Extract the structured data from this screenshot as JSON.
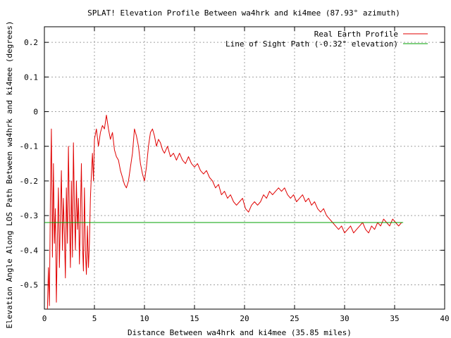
{
  "chart_data": {
    "type": "line",
    "title": "SPLAT! Elevation Profile Between wa4hrk and ki4mee (87.93° azimuth)",
    "xlabel": "Distance Between wa4hrk and ki4mee (35.85 miles)",
    "ylabel": "Elevation Angle Along LOS Path Between wa4hrk and ki4mee (degrees)",
    "xlim": [
      0,
      40
    ],
    "ylim": [
      -0.57,
      0.245
    ],
    "x_ticks": [
      "0",
      "5",
      "10",
      "15",
      "20",
      "25",
      "30",
      "35",
      "40"
    ],
    "x_tick_values": [
      0,
      5,
      10,
      15,
      20,
      25,
      30,
      35,
      40
    ],
    "y_ticks": [
      "0.2",
      "0.1",
      "0",
      "-0.1",
      "-0.2",
      "-0.3",
      "-0.4",
      "-0.5"
    ],
    "y_tick_values": [
      0.2,
      0.1,
      0,
      -0.1,
      -0.2,
      -0.3,
      -0.4,
      -0.5
    ],
    "grid": true,
    "legend_position": "top-right",
    "series": [
      {
        "name": "Real Earth Profile",
        "color": "#e00000",
        "x": [
          0.3,
          0.4,
          0.5,
          0.6,
          0.7,
          0.8,
          0.9,
          1.0,
          1.1,
          1.2,
          1.3,
          1.4,
          1.5,
          1.6,
          1.7,
          1.8,
          1.9,
          2.0,
          2.1,
          2.2,
          2.3,
          2.4,
          2.5,
          2.6,
          2.7,
          2.8,
          2.9,
          3.0,
          3.1,
          3.2,
          3.3,
          3.4,
          3.5,
          3.6,
          3.7,
          3.8,
          3.9,
          4.0,
          4.1,
          4.2,
          4.3,
          4.4,
          4.5,
          4.6,
          4.7,
          4.8,
          4.9,
          5.0,
          5.2,
          5.4,
          5.6,
          5.8,
          6.0,
          6.2,
          6.4,
          6.6,
          6.8,
          7.0,
          7.2,
          7.4,
          7.6,
          7.8,
          8.0,
          8.2,
          8.4,
          8.6,
          8.8,
          9.0,
          9.2,
          9.4,
          9.6,
          9.8,
          10.0,
          10.2,
          10.4,
          10.6,
          10.8,
          11.0,
          11.2,
          11.4,
          11.6,
          11.8,
          12.0,
          12.3,
          12.6,
          12.9,
          13.2,
          13.5,
          13.8,
          14.1,
          14.4,
          14.7,
          15.0,
          15.3,
          15.6,
          15.9,
          16.2,
          16.5,
          16.8,
          17.1,
          17.4,
          17.7,
          18.0,
          18.3,
          18.6,
          18.9,
          19.2,
          19.5,
          19.8,
          20.1,
          20.4,
          20.7,
          21.0,
          21.3,
          21.6,
          21.9,
          22.2,
          22.5,
          22.8,
          23.1,
          23.4,
          23.7,
          24.0,
          24.3,
          24.6,
          24.9,
          25.2,
          25.5,
          25.8,
          26.1,
          26.4,
          26.7,
          27.0,
          27.3,
          27.6,
          27.9,
          28.2,
          28.5,
          28.8,
          29.1,
          29.4,
          29.7,
          30.0,
          30.3,
          30.6,
          30.9,
          31.2,
          31.5,
          31.8,
          32.1,
          32.4,
          32.7,
          33.0,
          33.3,
          33.6,
          33.9,
          34.2,
          34.5,
          34.8,
          35.1,
          35.4,
          35.7
        ],
        "y": [
          -0.57,
          -0.45,
          -0.56,
          -0.25,
          -0.05,
          -0.42,
          -0.15,
          -0.38,
          -0.28,
          -0.55,
          -0.36,
          -0.22,
          -0.45,
          -0.3,
          -0.17,
          -0.4,
          -0.25,
          -0.35,
          -0.48,
          -0.22,
          -0.38,
          -0.1,
          -0.3,
          -0.45,
          -0.2,
          -0.42,
          -0.09,
          -0.28,
          -0.4,
          -0.2,
          -0.34,
          -0.25,
          -0.44,
          -0.3,
          -0.15,
          -0.38,
          -0.46,
          -0.22,
          -0.4,
          -0.47,
          -0.33,
          -0.45,
          -0.38,
          -0.25,
          -0.18,
          -0.12,
          -0.2,
          -0.08,
          -0.05,
          -0.1,
          -0.06,
          -0.04,
          -0.05,
          -0.01,
          -0.05,
          -0.08,
          -0.06,
          -0.11,
          -0.13,
          -0.14,
          -0.17,
          -0.19,
          -0.21,
          -0.22,
          -0.2,
          -0.16,
          -0.12,
          -0.05,
          -0.07,
          -0.1,
          -0.15,
          -0.18,
          -0.2,
          -0.16,
          -0.1,
          -0.06,
          -0.05,
          -0.07,
          -0.1,
          -0.08,
          -0.09,
          -0.11,
          -0.12,
          -0.1,
          -0.13,
          -0.12,
          -0.14,
          -0.12,
          -0.14,
          -0.15,
          -0.13,
          -0.15,
          -0.16,
          -0.15,
          -0.17,
          -0.18,
          -0.17,
          -0.19,
          -0.2,
          -0.22,
          -0.21,
          -0.24,
          -0.23,
          -0.25,
          -0.24,
          -0.26,
          -0.27,
          -0.26,
          -0.25,
          -0.28,
          -0.29,
          -0.27,
          -0.26,
          -0.27,
          -0.26,
          -0.24,
          -0.25,
          -0.23,
          -0.24,
          -0.23,
          -0.22,
          -0.23,
          -0.22,
          -0.24,
          -0.25,
          -0.24,
          -0.26,
          -0.25,
          -0.24,
          -0.26,
          -0.25,
          -0.27,
          -0.26,
          -0.28,
          -0.29,
          -0.28,
          -0.3,
          -0.31,
          -0.32,
          -0.33,
          -0.34,
          -0.33,
          -0.35,
          -0.34,
          -0.33,
          -0.35,
          -0.34,
          -0.33,
          -0.32,
          -0.34,
          -0.35,
          -0.33,
          -0.34,
          -0.32,
          -0.33,
          -0.31,
          -0.32,
          -0.33,
          -0.31,
          -0.32,
          -0.33,
          -0.32
        ]
      },
      {
        "name": "Line of Sight Path (-0.32° elevation)",
        "color": "#00a000",
        "x": [
          0,
          35.85
        ],
        "y": [
          -0.32,
          -0.32
        ]
      }
    ]
  }
}
